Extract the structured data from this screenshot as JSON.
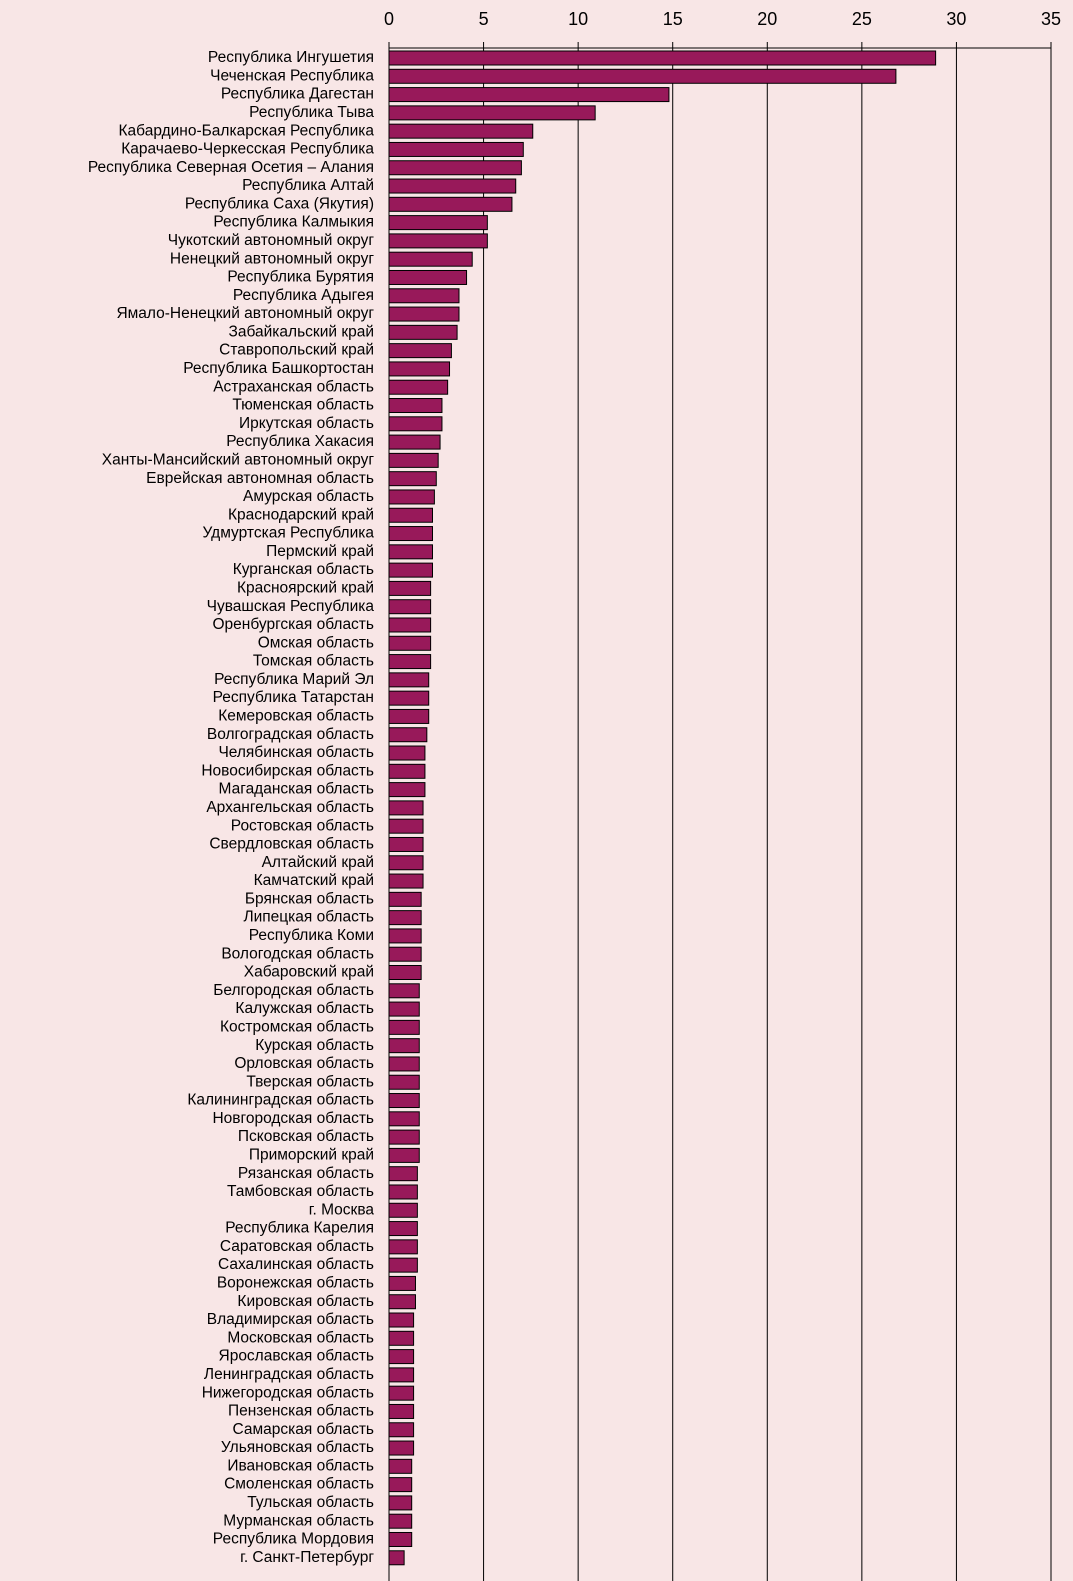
{
  "chart_data": {
    "type": "barh",
    "categories": [
      "Республика Ингушетия",
      "Чеченская Республика",
      "Республика Дагестан",
      "Республика Тыва",
      "Кабардино-Балкарская Республика",
      "Карачаево-Черкесская Республика",
      "Республика Северная Осетия – Алания",
      "Республика Алтай",
      "Республика Саха (Якутия)",
      "Республика Калмыкия",
      "Чукотский автономный округ",
      "Ненецкий автономный округ",
      "Республика Бурятия",
      "Республика Адыгея",
      "Ямало-Ненецкий автономный округ",
      "Забайкальский край",
      "Ставропольский край",
      "Республика Башкортостан",
      "Астраханская область",
      "Тюменская область",
      "Иркутская область",
      "Республика Хакасия",
      "Ханты-Мансийский автономный округ",
      "Еврейская автономная область",
      "Амурская область",
      "Краснодарский край",
      "Удмуртская Республика",
      "Пермский край",
      "Курганская область",
      "Красноярский край",
      "Чувашская Республика",
      "Оренбургская область",
      "Омская область",
      "Томская область",
      "Республика Марий Эл",
      "Республика Татарстан",
      "Кемеровская область",
      "Волгоградская область",
      "Челябинская область",
      "Новосибирская область",
      "Магаданская область",
      "Архангельская область",
      "Ростовская область",
      "Свердловская область",
      "Алтайский край",
      "Камчатский край",
      "Брянская область",
      "Липецкая область",
      "Республика Коми",
      "Вологодская область",
      "Хабаровский край",
      "Белгородская область",
      "Калужская область",
      "Костромская область",
      "Курская область",
      "Орловская область",
      "Тверская область",
      "Калининградская область",
      "Новгородская область",
      "Псковская область",
      "Приморский край",
      "Рязанская область",
      "Тамбовская область",
      "г. Москва",
      "Республика Карелия",
      "Саратовская область",
      "Сахалинская область",
      "Воронежская область",
      "Кировская область",
      "Владимирская область",
      "Московская область",
      "Ярославская область",
      "Ленинградская область",
      "Нижегородская область",
      "Пензенская область",
      "Самарская область",
      "Ульяновская область",
      "Ивановская область",
      "Смоленская область",
      "Тульская область",
      "Мурманская область",
      "Республика Мордовия",
      "г. Санкт-Петербург"
    ],
    "values": [
      28.9,
      26.8,
      14.8,
      10.9,
      7.6,
      7.1,
      7.0,
      6.7,
      6.5,
      5.2,
      5.2,
      4.4,
      4.1,
      3.7,
      3.7,
      3.6,
      3.3,
      3.2,
      3.1,
      2.8,
      2.8,
      2.7,
      2.6,
      2.5,
      2.4,
      2.3,
      2.3,
      2.3,
      2.3,
      2.2,
      2.2,
      2.2,
      2.2,
      2.2,
      2.1,
      2.1,
      2.1,
      2.0,
      1.9,
      1.9,
      1.9,
      1.8,
      1.8,
      1.8,
      1.8,
      1.8,
      1.7,
      1.7,
      1.7,
      1.7,
      1.7,
      1.6,
      1.6,
      1.6,
      1.6,
      1.6,
      1.6,
      1.6,
      1.6,
      1.6,
      1.6,
      1.5,
      1.5,
      1.5,
      1.5,
      1.5,
      1.5,
      1.4,
      1.4,
      1.3,
      1.3,
      1.3,
      1.3,
      1.3,
      1.3,
      1.3,
      1.3,
      1.2,
      1.2,
      1.2,
      1.2,
      1.2,
      0.8
    ],
    "color": "#98195a",
    "xlim": [
      0,
      35
    ],
    "xticks": [
      0,
      5,
      10,
      15,
      20,
      25,
      30,
      35
    ],
    "grid": true
  }
}
